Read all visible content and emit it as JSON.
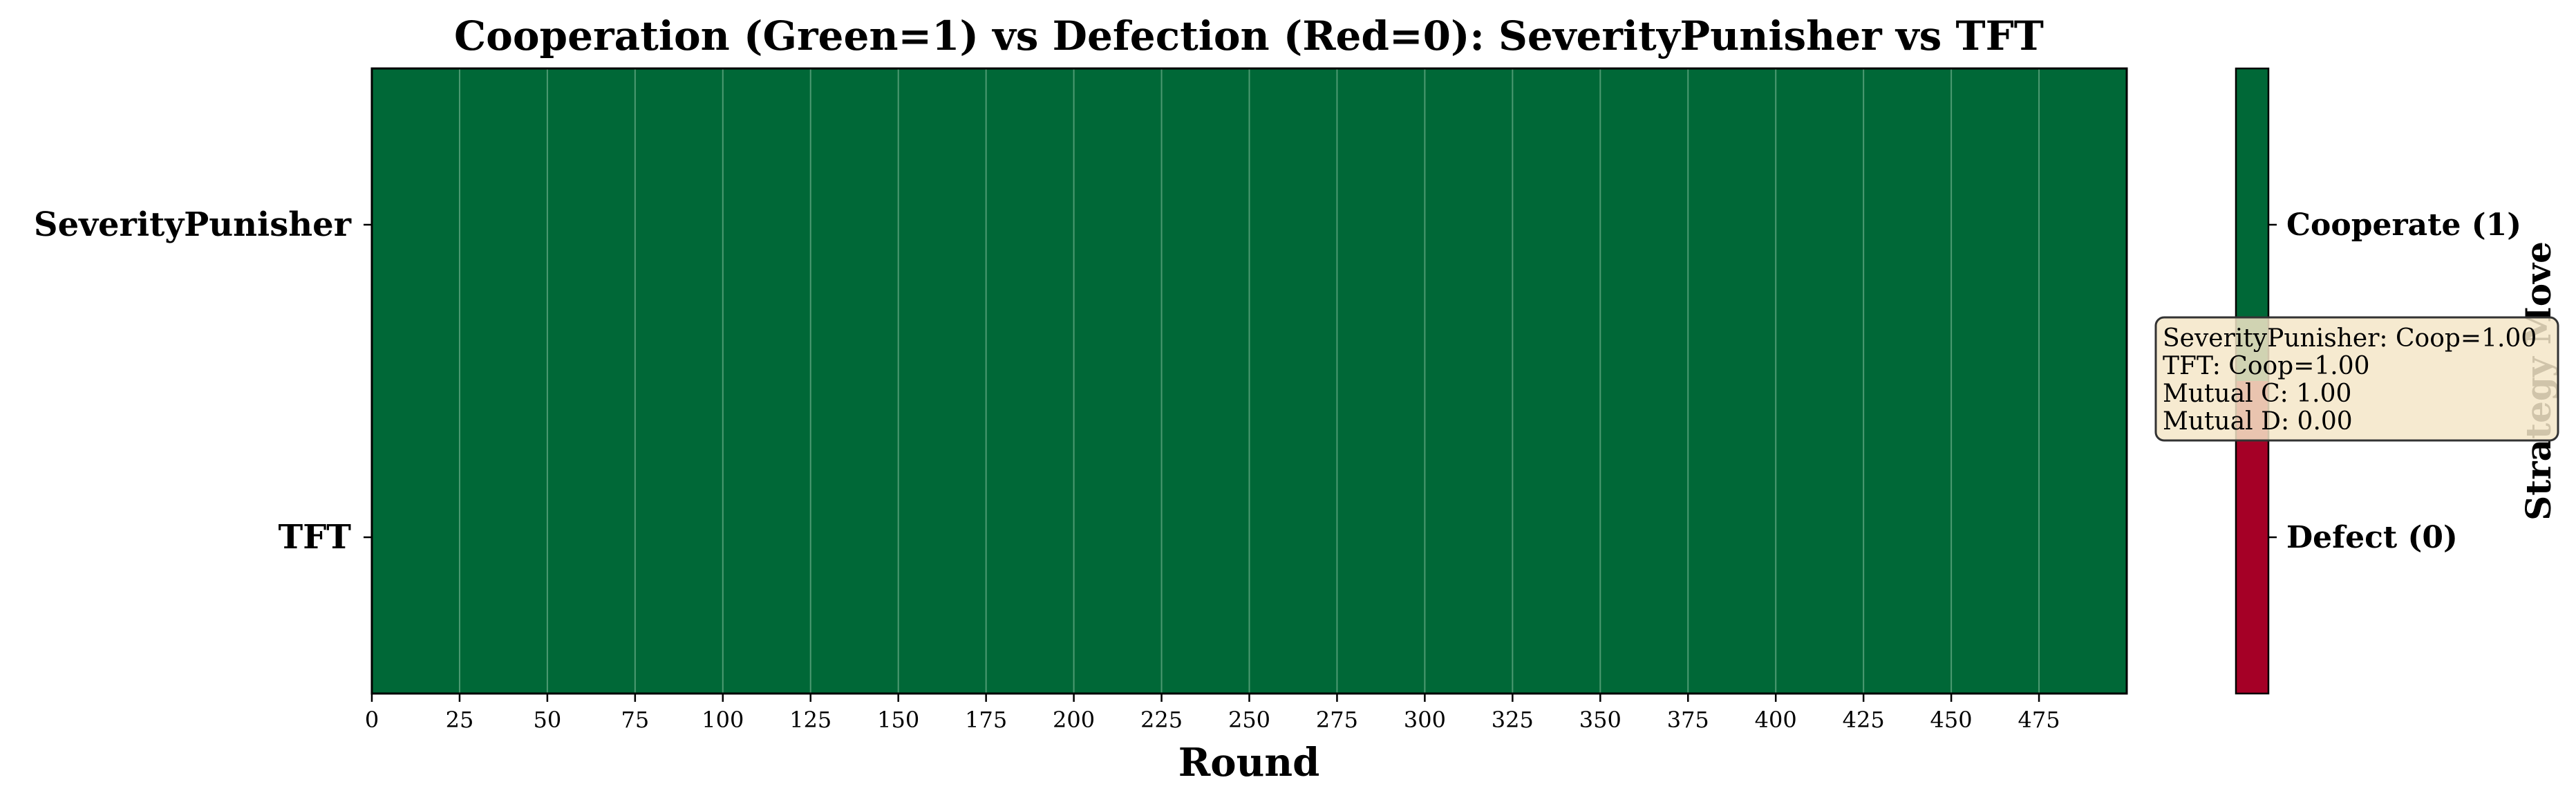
{
  "chart_data": {
    "type": "heatmap",
    "title": "Cooperation (Green=1) vs Defection (Red=0): SeverityPunisher vs TFT",
    "xlabel": "Round",
    "xlim": [
      0,
      500
    ],
    "xticks": [
      0,
      25,
      50,
      75,
      100,
      125,
      150,
      175,
      200,
      225,
      250,
      275,
      300,
      325,
      350,
      375,
      400,
      425,
      450,
      475
    ],
    "rows": [
      {
        "name": "SeverityPunisher",
        "move_value": 1,
        "rounds_start": 0,
        "rounds_end": 500
      },
      {
        "name": "TFT",
        "move_value": 1,
        "rounds_start": 0,
        "rounds_end": 500
      }
    ],
    "colors": {
      "cooperate": "#006837",
      "defect": "#a50026",
      "gridline": "#4d9a72"
    },
    "colorbar": {
      "label": "Strategy Move",
      "ticks": [
        {
          "value": 1,
          "label": "Cooperate (1)"
        },
        {
          "value": 0,
          "label": "Defect (0)"
        }
      ]
    },
    "stats_box": {
      "lines": [
        "SeverityPunisher: Coop=1.00",
        "TFT: Coop=1.00",
        "Mutual C: 1.00",
        "Mutual D: 0.00"
      ],
      "background": "#f5e6c8"
    }
  }
}
